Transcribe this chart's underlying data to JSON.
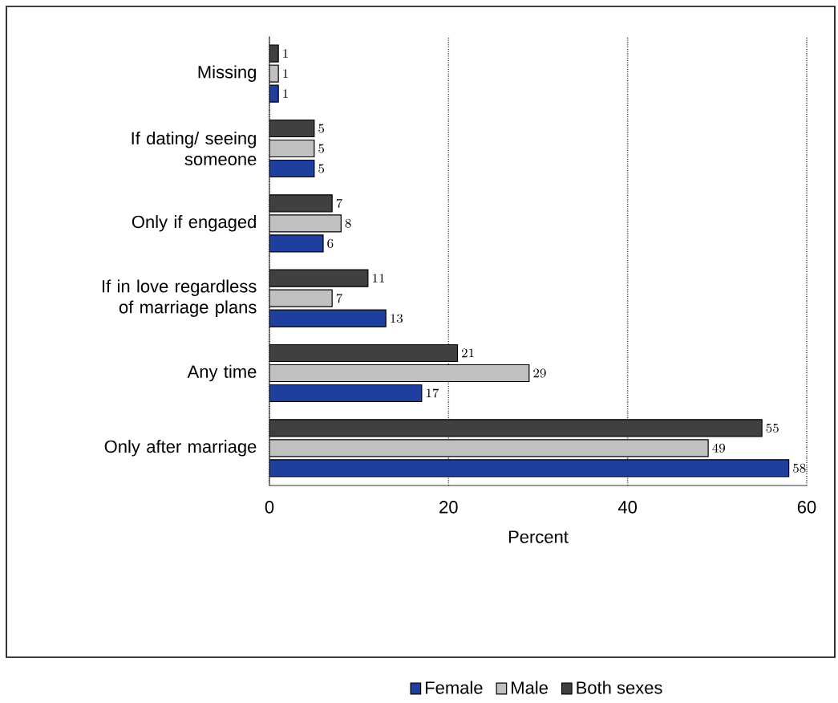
{
  "chart_data": {
    "type": "bar",
    "orientation": "horizontal",
    "xlabel": "Percent",
    "categories": [
      "Missing",
      "If dating/ seeing someone",
      "Only if engaged",
      "If in love regardless of marriage plans",
      "Any time",
      "Only after marriage"
    ],
    "series": [
      {
        "name": "Female",
        "color": "#1f3f9f",
        "values": [
          1,
          5,
          6,
          13,
          17,
          58
        ]
      },
      {
        "name": "Male",
        "color": "#c0c0c0",
        "values": [
          1,
          5,
          8,
          7,
          29,
          49
        ]
      },
      {
        "name": "Both sexes",
        "color": "#404040",
        "values": [
          1,
          5,
          7,
          11,
          21,
          55
        ]
      }
    ],
    "xlim": [
      0,
      60
    ],
    "xticks": [
      0,
      20,
      40,
      60
    ],
    "grid": "x",
    "legend": "bottom",
    "data_labels": true
  }
}
